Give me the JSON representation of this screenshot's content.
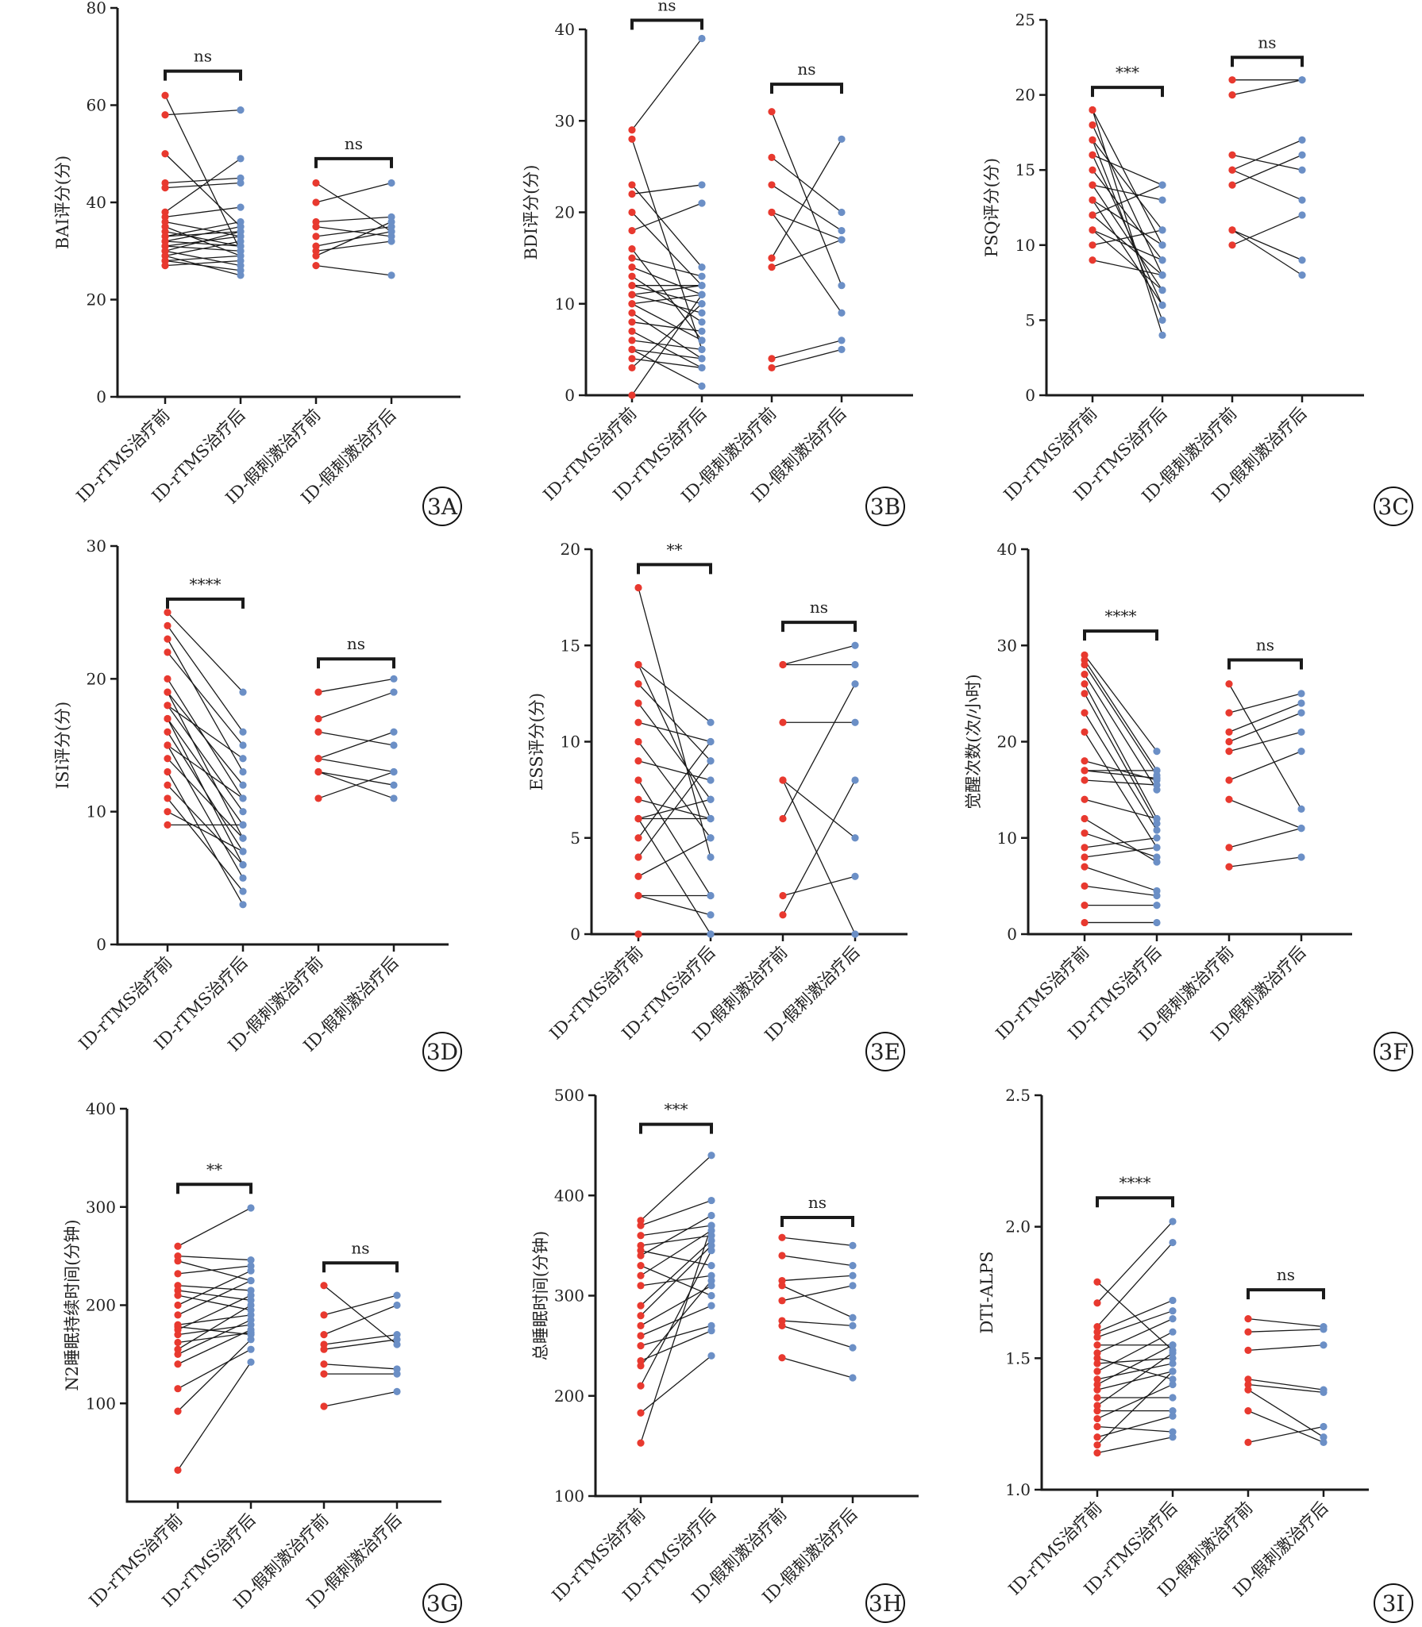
{
  "figure": {
    "group_labels": [
      "ID-rTMS治疗前",
      "ID-rTMS治疗后",
      "ID-假刺激治疗前",
      "ID-假刺激治疗后"
    ],
    "colors": {
      "pre": "#e8392f",
      "post": "#6b8fc6",
      "line": "#1a1a1a",
      "axis": "#1a1a1a"
    }
  },
  "chart_data": [
    {
      "panel": "3A",
      "type": "scatter",
      "ylabel": "BAI评分(分)",
      "ylim": [
        0,
        80
      ],
      "yticks": [
        0,
        20,
        40,
        60,
        80
      ],
      "categories": [
        "ID-rTMS治疗前",
        "ID-rTMS治疗后",
        "ID-假刺激治疗前",
        "ID-假刺激治疗后"
      ],
      "sig": [
        {
          "label": "ns",
          "from": 0,
          "to": 1,
          "y": 67
        },
        {
          "label": "ns",
          "from": 2,
          "to": 3,
          "y": 49
        }
      ],
      "pairs": [
        {
          "pre": [
            62,
            50,
            58,
            44,
            43,
            38,
            37,
            36,
            35,
            34,
            33,
            33,
            32,
            32,
            31,
            31,
            30,
            30,
            29,
            29,
            28,
            28,
            27
          ],
          "post": [
            30,
            35,
            59,
            45,
            44,
            49,
            39,
            33,
            29,
            31,
            34,
            36,
            31,
            35,
            30,
            33,
            27,
            34,
            25,
            32,
            29,
            26,
            28
          ]
        },
        {
          "pre": [
            44,
            40,
            36,
            35,
            33,
            31,
            30,
            29,
            27
          ],
          "post": [
            34,
            44,
            37,
            33,
            35,
            34,
            32,
            36,
            25
          ]
        }
      ]
    },
    {
      "panel": "3B",
      "type": "scatter",
      "ylabel": "BDI评分(分)",
      "ylim": [
        0,
        40
      ],
      "yticks": [
        0,
        10,
        20,
        30,
        40
      ],
      "categories": [
        "ID-rTMS治疗前",
        "ID-rTMS治疗后",
        "ID-假刺激治疗前",
        "ID-假刺激治疗后"
      ],
      "sig": [
        {
          "label": "ns",
          "from": 0,
          "to": 1,
          "y": 41
        },
        {
          "label": "ns",
          "from": 2,
          "to": 3,
          "y": 34
        }
      ],
      "pairs": [
        {
          "pre": [
            29,
            28,
            23,
            22,
            20,
            18,
            16,
            15,
            14,
            13,
            12,
            12,
            11,
            11,
            10,
            10,
            9,
            8,
            7,
            6,
            5,
            5,
            4,
            3,
            0
          ],
          "post": [
            39,
            5,
            14,
            23,
            12,
            21,
            6,
            13,
            11,
            8,
            12,
            10,
            12,
            9,
            11,
            6,
            4,
            7,
            3,
            5,
            4,
            1,
            3,
            10,
            11
          ]
        },
        {
          "pre": [
            31,
            26,
            23,
            20,
            20,
            15,
            14,
            4,
            3
          ],
          "post": [
            12,
            20,
            18,
            17,
            9,
            28,
            17,
            6,
            5
          ]
        }
      ]
    },
    {
      "panel": "3C",
      "type": "scatter",
      "ylabel": "PSQ评分(分)",
      "ylim": [
        0,
        25
      ],
      "yticks": [
        0,
        5,
        10,
        15,
        20,
        25
      ],
      "categories": [
        "ID-rTMS治疗前",
        "ID-rTMS治疗后",
        "ID-假刺激治疗前",
        "ID-假刺激治疗后"
      ],
      "sig": [
        {
          "label": "***",
          "from": 0,
          "to": 1,
          "y": 20.5
        },
        {
          "label": "ns",
          "from": 2,
          "to": 3,
          "y": 22.5
        }
      ],
      "pairs": [
        {
          "pre": [
            19,
            19,
            18,
            17,
            17,
            16,
            16,
            15,
            14,
            14,
            13,
            13,
            12,
            12,
            11,
            11,
            10,
            9
          ],
          "post": [
            4,
            10,
            8,
            5,
            11,
            6,
            14,
            9,
            7,
            13,
            10,
            6,
            14,
            8,
            9,
            7,
            11,
            8
          ]
        },
        {
          "pre": [
            21,
            20,
            16,
            15,
            15,
            14,
            11,
            11,
            10
          ],
          "post": [
            21,
            21,
            15,
            17,
            13,
            16,
            9,
            8,
            12
          ]
        }
      ]
    },
    {
      "panel": "3D",
      "type": "scatter",
      "ylabel": "ISI评分(分)",
      "ylim": [
        0,
        30
      ],
      "yticks": [
        0,
        10,
        20,
        30
      ],
      "categories": [
        "ID-rTMS治疗前",
        "ID-rTMS治疗后",
        "ID-假刺激治疗前",
        "ID-假刺激治疗后"
      ],
      "sig": [
        {
          "label": "****",
          "from": 0,
          "to": 1,
          "y": 26
        },
        {
          "label": "ns",
          "from": 2,
          "to": 3,
          "y": 21.5
        }
      ],
      "pairs": [
        {
          "pre": [
            25,
            24,
            23,
            22,
            20,
            19,
            19,
            18,
            18,
            17,
            17,
            16,
            15,
            15,
            14,
            13,
            12,
            11,
            10,
            9
          ],
          "post": [
            19,
            16,
            13,
            15,
            11,
            8,
            12,
            10,
            14,
            9,
            6,
            7,
            11,
            5,
            8,
            3,
            6,
            4,
            7,
            9
          ]
        },
        {
          "pre": [
            19,
            17,
            16,
            14,
            14,
            13,
            13,
            11
          ],
          "post": [
            20,
            19,
            15,
            16,
            13,
            12,
            11,
            13
          ]
        }
      ]
    },
    {
      "panel": "3E",
      "type": "scatter",
      "ylabel": "ESS评分(分)",
      "ylim": [
        0,
        20
      ],
      "yticks": [
        0,
        5,
        10,
        15,
        20
      ],
      "categories": [
        "ID-rTMS治疗前",
        "ID-rTMS治疗后",
        "ID-假刺激治疗前",
        "ID-假刺激治疗后"
      ],
      "sig": [
        {
          "label": "**",
          "from": 0,
          "to": 1,
          "y": 19.2
        },
        {
          "label": "ns",
          "from": 2,
          "to": 3,
          "y": 16.2
        }
      ],
      "pairs": [
        {
          "pre": [
            18,
            14,
            14,
            13,
            12,
            11,
            10,
            9,
            8,
            7,
            6,
            6,
            6,
            5,
            4,
            3,
            2,
            2,
            0
          ],
          "post": [
            4,
            11,
            6,
            9,
            7,
            10,
            5,
            8,
            2,
            6,
            7,
            6,
            0,
            10,
            9,
            5,
            1,
            2,
            0
          ]
        },
        {
          "pre": [
            14,
            14,
            11,
            8,
            8,
            6,
            2,
            1
          ],
          "post": [
            15,
            14,
            11,
            0,
            5,
            13,
            3,
            8
          ]
        }
      ]
    },
    {
      "panel": "3F",
      "type": "scatter",
      "ylabel": "觉醒次数(次/小时)",
      "ylim": [
        0,
        40
      ],
      "yticks": [
        0,
        10,
        20,
        30,
        40
      ],
      "categories": [
        "ID-rTMS治疗前",
        "ID-rTMS治疗后",
        "ID-假刺激治疗前",
        "ID-假刺激治疗后"
      ],
      "sig": [
        {
          "label": "****",
          "from": 0,
          "to": 1,
          "y": 31.5
        },
        {
          "label": "ns",
          "from": 2,
          "to": 3,
          "y": 28.5
        }
      ],
      "pairs": [
        {
          "pre": [
            29,
            28.5,
            28,
            27,
            26,
            25,
            23,
            21,
            18,
            17,
            17,
            16,
            14,
            12,
            10.5,
            9,
            8,
            7,
            5,
            3,
            1.2
          ],
          "post": [
            19,
            17,
            16.5,
            15,
            12,
            11.5,
            10.8,
            9,
            16,
            17,
            16.2,
            15.5,
            12,
            7.5,
            8,
            10,
            9,
            4.5,
            4,
            3,
            1.2
          ]
        },
        {
          "pre": [
            26,
            23,
            21,
            20,
            19,
            16,
            14,
            9,
            7
          ],
          "post": [
            13,
            25,
            24,
            23,
            21,
            19,
            11,
            11,
            8
          ]
        }
      ]
    },
    {
      "panel": "3G",
      "type": "scatter",
      "ylabel": "N2睡眠持续时间(分钟)",
      "ylim": [
        0,
        400
      ],
      "yticks": [
        100,
        200,
        300,
        400
      ],
      "categories": [
        "ID-rTMS治疗前",
        "ID-rTMS治疗后",
        "ID-假刺激治疗前",
        "ID-假刺激治疗后"
      ],
      "sig": [
        {
          "label": "**",
          "from": 0,
          "to": 1,
          "y": 323
        },
        {
          "label": "ns",
          "from": 2,
          "to": 3,
          "y": 243
        }
      ],
      "pairs": [
        {
          "pre": [
            260,
            250,
            245,
            232,
            220,
            215,
            210,
            200,
            190,
            180,
            178,
            175,
            170,
            162,
            155,
            150,
            140,
            115,
            92,
            32
          ],
          "post": [
            299,
            246,
            225,
            240,
            215,
            205,
            195,
            235,
            225,
            190,
            170,
            210,
            180,
            172,
            200,
            185,
            175,
            155,
            165,
            142
          ]
        },
        {
          "pre": [
            220,
            190,
            170,
            160,
            155,
            140,
            130,
            97
          ],
          "post": [
            160,
            210,
            200,
            170,
            165,
            135,
            130,
            112
          ]
        }
      ]
    },
    {
      "panel": "3H",
      "type": "scatter",
      "ylabel": "总睡眠时间(分钟)",
      "ylim": [
        100,
        500
      ],
      "yticks": [
        100,
        200,
        300,
        400,
        500
      ],
      "categories": [
        "ID-rTMS治疗前",
        "ID-rTMS治疗后",
        "ID-假刺激治疗前",
        "ID-假刺激治疗后"
      ],
      "sig": [
        {
          "label": "***",
          "from": 0,
          "to": 1,
          "y": 471
        },
        {
          "label": "ns",
          "from": 2,
          "to": 3,
          "y": 378
        }
      ],
      "pairs": [
        {
          "pre": [
            375,
            370,
            360,
            350,
            345,
            340,
            330,
            320,
            310,
            290,
            280,
            270,
            260,
            250,
            235,
            230,
            210,
            183,
            153
          ],
          "post": [
            440,
            395,
            370,
            360,
            330,
            380,
            300,
            365,
            320,
            355,
            350,
            310,
            290,
            270,
            265,
            315,
            345,
            240,
            370
          ]
        },
        {
          "pre": [
            358,
            340,
            315,
            310,
            295,
            275,
            270,
            238
          ],
          "post": [
            350,
            330,
            320,
            278,
            310,
            270,
            248,
            218
          ]
        }
      ]
    },
    {
      "panel": "3I",
      "type": "scatter",
      "ylabel": "DTI-ALPS",
      "ylim": [
        1.0,
        2.5
      ],
      "yticks": [
        1.0,
        1.5,
        2.0,
        2.5
      ],
      "categories": [
        "ID-rTMS治疗前",
        "ID-rTMS治疗后",
        "ID-假刺激治疗前",
        "ID-假刺激治疗后"
      ],
      "sig": [
        {
          "label": "****",
          "from": 0,
          "to": 1,
          "y": 2.11
        },
        {
          "label": "ns",
          "from": 2,
          "to": 3,
          "y": 1.76
        }
      ],
      "pairs": [
        {
          "pre": [
            1.79,
            1.71,
            1.62,
            1.6,
            1.58,
            1.55,
            1.52,
            1.5,
            1.48,
            1.45,
            1.42,
            1.4,
            1.38,
            1.35,
            1.32,
            1.3,
            1.27,
            1.24,
            1.2,
            1.17,
            1.14
          ],
          "post": [
            1.53,
            2.02,
            1.94,
            1.72,
            1.68,
            1.55,
            1.65,
            1.42,
            1.5,
            1.6,
            1.48,
            1.55,
            1.45,
            1.35,
            1.52,
            1.3,
            1.4,
            1.22,
            1.28,
            1.45,
            1.2
          ]
        },
        {
          "pre": [
            1.65,
            1.6,
            1.53,
            1.42,
            1.4,
            1.38,
            1.3,
            1.18
          ],
          "post": [
            1.62,
            1.61,
            1.55,
            1.38,
            1.37,
            1.2,
            1.18,
            1.24
          ]
        }
      ]
    }
  ]
}
